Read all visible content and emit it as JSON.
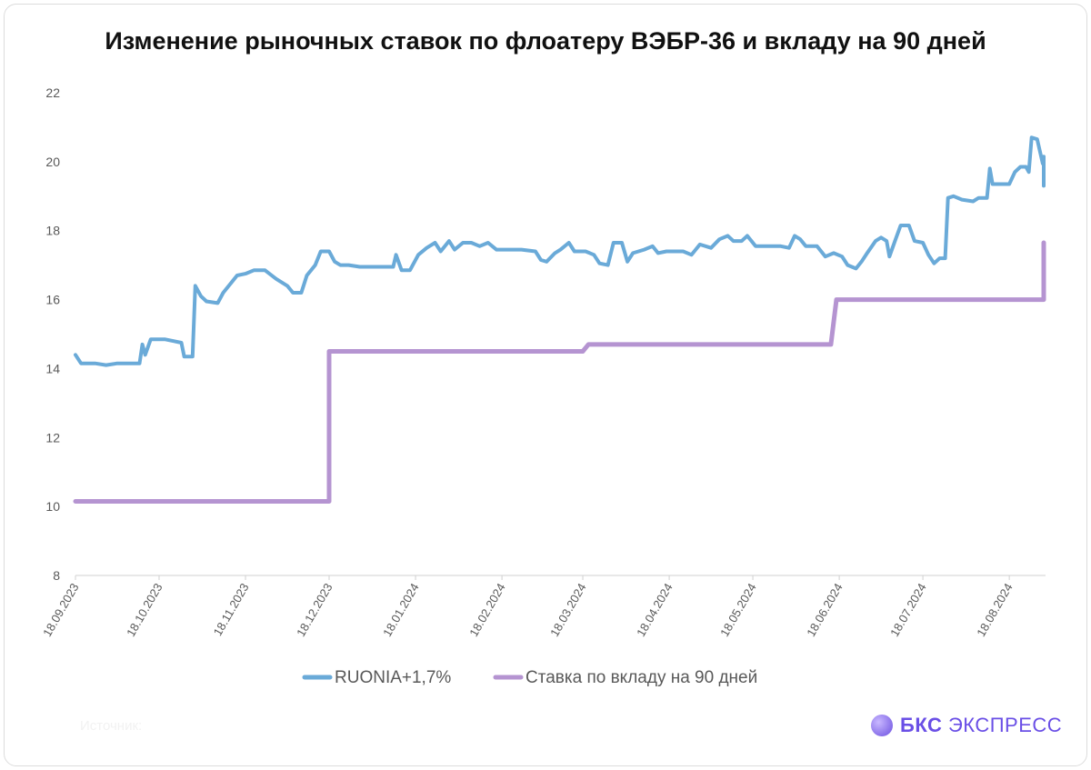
{
  "chart_data": {
    "type": "line",
    "title": "Изменение рыночных ставок по флоатеру ВЭБР-36 и вкладу на 90 дней",
    "ylim": [
      8,
      22
    ],
    "yticks": [
      "8",
      "10",
      "12",
      "14",
      "16",
      "18",
      "20",
      "22"
    ],
    "x_range": [
      "2023-09-18",
      "2024-08-31"
    ],
    "xticks": [
      {
        "label": "18.09.2023",
        "date": "2023-09-18"
      },
      {
        "label": "18.10.2023",
        "date": "2023-10-18"
      },
      {
        "label": "18.11.2023",
        "date": "2023-11-18"
      },
      {
        "label": "18.12.2023",
        "date": "2023-12-18"
      },
      {
        "label": "18.01.2024",
        "date": "2024-01-18"
      },
      {
        "label": "18.02.2024",
        "date": "2024-02-18"
      },
      {
        "label": "18.03.2024",
        "date": "2024-03-18"
      },
      {
        "label": "18.04.2024",
        "date": "2024-04-18"
      },
      {
        "label": "18.05.2024",
        "date": "2024-05-18"
      },
      {
        "label": "18.06.2024",
        "date": "2024-06-18"
      },
      {
        "label": "18.07.2024",
        "date": "2024-07-18"
      },
      {
        "label": "18.08.2024",
        "date": "2024-08-18"
      }
    ],
    "grid": false,
    "legend_position": "bottom",
    "series": [
      {
        "name": "RUONIA+1,7%",
        "color": "#6aaad8",
        "points": [
          [
            "2023-09-18",
            14.4
          ],
          [
            "2023-09-20",
            14.15
          ],
          [
            "2023-09-25",
            14.15
          ],
          [
            "2023-09-29",
            14.1
          ],
          [
            "2023-10-03",
            14.15
          ],
          [
            "2023-10-08",
            14.15
          ],
          [
            "2023-10-11",
            14.15
          ],
          [
            "2023-10-12",
            14.7
          ],
          [
            "2023-10-13",
            14.4
          ],
          [
            "2023-10-15",
            14.85
          ],
          [
            "2023-10-20",
            14.85
          ],
          [
            "2023-10-23",
            14.8
          ],
          [
            "2023-10-26",
            14.75
          ],
          [
            "2023-10-27",
            14.35
          ],
          [
            "2023-10-30",
            14.35
          ],
          [
            "2023-10-31",
            16.4
          ],
          [
            "2023-11-02",
            16.1
          ],
          [
            "2023-11-04",
            15.95
          ],
          [
            "2023-11-08",
            15.9
          ],
          [
            "2023-11-10",
            16.2
          ],
          [
            "2023-11-13",
            16.5
          ],
          [
            "2023-11-15",
            16.7
          ],
          [
            "2023-11-18",
            16.75
          ],
          [
            "2023-11-21",
            16.85
          ],
          [
            "2023-11-25",
            16.85
          ],
          [
            "2023-11-29",
            16.6
          ],
          [
            "2023-12-03",
            16.4
          ],
          [
            "2023-12-05",
            16.2
          ],
          [
            "2023-12-08",
            16.2
          ],
          [
            "2023-12-10",
            16.7
          ],
          [
            "2023-12-13",
            17.0
          ],
          [
            "2023-12-15",
            17.4
          ],
          [
            "2023-12-18",
            17.4
          ],
          [
            "2023-12-20",
            17.1
          ],
          [
            "2023-12-22",
            17.0
          ],
          [
            "2023-12-25",
            17.0
          ],
          [
            "2023-12-29",
            16.95
          ],
          [
            "2024-01-05",
            16.95
          ],
          [
            "2024-01-10",
            16.95
          ],
          [
            "2024-01-11",
            17.3
          ],
          [
            "2024-01-13",
            16.85
          ],
          [
            "2024-01-16",
            16.85
          ],
          [
            "2024-01-19",
            17.3
          ],
          [
            "2024-01-22",
            17.5
          ],
          [
            "2024-01-25",
            17.65
          ],
          [
            "2024-01-27",
            17.4
          ],
          [
            "2024-01-30",
            17.7
          ],
          [
            "2024-02-01",
            17.45
          ],
          [
            "2024-02-04",
            17.65
          ],
          [
            "2024-02-07",
            17.65
          ],
          [
            "2024-02-10",
            17.55
          ],
          [
            "2024-02-13",
            17.65
          ],
          [
            "2024-02-16",
            17.45
          ],
          [
            "2024-02-20",
            17.45
          ],
          [
            "2024-02-25",
            17.45
          ],
          [
            "2024-03-01",
            17.4
          ],
          [
            "2024-03-03",
            17.15
          ],
          [
            "2024-03-05",
            17.1
          ],
          [
            "2024-03-08",
            17.35
          ],
          [
            "2024-03-10",
            17.45
          ],
          [
            "2024-03-13",
            17.65
          ],
          [
            "2024-03-15",
            17.4
          ],
          [
            "2024-03-19",
            17.4
          ],
          [
            "2024-03-22",
            17.3
          ],
          [
            "2024-03-24",
            17.05
          ],
          [
            "2024-03-27",
            17.0
          ],
          [
            "2024-03-29",
            17.65
          ],
          [
            "2024-04-01",
            17.65
          ],
          [
            "2024-04-03",
            17.1
          ],
          [
            "2024-04-05",
            17.35
          ],
          [
            "2024-04-09",
            17.45
          ],
          [
            "2024-04-12",
            17.55
          ],
          [
            "2024-04-14",
            17.35
          ],
          [
            "2024-04-17",
            17.4
          ],
          [
            "2024-04-20",
            17.4
          ],
          [
            "2024-04-23",
            17.4
          ],
          [
            "2024-04-26",
            17.3
          ],
          [
            "2024-04-29",
            17.6
          ],
          [
            "2024-05-03",
            17.5
          ],
          [
            "2024-05-06",
            17.75
          ],
          [
            "2024-05-09",
            17.85
          ],
          [
            "2024-05-11",
            17.7
          ],
          [
            "2024-05-14",
            17.7
          ],
          [
            "2024-05-16",
            17.85
          ],
          [
            "2024-05-19",
            17.55
          ],
          [
            "2024-05-23",
            17.55
          ],
          [
            "2024-05-28",
            17.55
          ],
          [
            "2024-05-31",
            17.5
          ],
          [
            "2024-06-02",
            17.85
          ],
          [
            "2024-06-04",
            17.75
          ],
          [
            "2024-06-06",
            17.55
          ],
          [
            "2024-06-10",
            17.55
          ],
          [
            "2024-06-13",
            17.25
          ],
          [
            "2024-06-16",
            17.35
          ],
          [
            "2024-06-19",
            17.25
          ],
          [
            "2024-06-21",
            17.0
          ],
          [
            "2024-06-24",
            16.9
          ],
          [
            "2024-06-26",
            17.1
          ],
          [
            "2024-06-28",
            17.35
          ],
          [
            "2024-07-01",
            17.7
          ],
          [
            "2024-07-03",
            17.8
          ],
          [
            "2024-07-05",
            17.7
          ],
          [
            "2024-07-06",
            17.25
          ],
          [
            "2024-07-08",
            17.7
          ],
          [
            "2024-07-10",
            18.15
          ],
          [
            "2024-07-13",
            18.15
          ],
          [
            "2024-07-15",
            17.7
          ],
          [
            "2024-07-18",
            17.65
          ],
          [
            "2024-07-20",
            17.3
          ],
          [
            "2024-07-22",
            17.05
          ],
          [
            "2024-07-24",
            17.2
          ],
          [
            "2024-07-26",
            17.2
          ],
          [
            "2024-07-27",
            18.95
          ],
          [
            "2024-07-29",
            19.0
          ],
          [
            "2024-08-01",
            18.9
          ],
          [
            "2024-08-05",
            18.85
          ],
          [
            "2024-08-07",
            18.95
          ],
          [
            "2024-08-10",
            18.95
          ],
          [
            "2024-08-11",
            19.8
          ],
          [
            "2024-08-12",
            19.35
          ],
          [
            "2024-08-16",
            19.35
          ],
          [
            "2024-08-18",
            19.35
          ],
          [
            "2024-08-20",
            19.7
          ],
          [
            "2024-08-22",
            19.85
          ],
          [
            "2024-08-24",
            19.85
          ],
          [
            "2024-08-25",
            19.7
          ],
          [
            "2024-08-26",
            20.7
          ],
          [
            "2024-08-28",
            20.65
          ],
          [
            "2024-08-30",
            19.95
          ],
          [
            "2024-09-01",
            20.1
          ],
          [
            "2024-09-04",
            20.0
          ],
          [
            "2024-09-06",
            19.3
          ],
          [
            "2024-09-08",
            20.0
          ],
          [
            "2024-09-10",
            20.15
          ]
        ]
      },
      {
        "name": "Ставка по вкладу на 90 дней",
        "color": "#b594d1",
        "points": [
          [
            "2023-09-18",
            10.15
          ],
          [
            "2023-12-18",
            10.15
          ],
          [
            "2023-12-18",
            14.5
          ],
          [
            "2024-03-18",
            14.5
          ],
          [
            "2024-03-20",
            14.7
          ],
          [
            "2024-06-15",
            14.7
          ],
          [
            "2024-06-17",
            16.0
          ],
          [
            "2024-09-10",
            16.0
          ],
          [
            "2024-09-10",
            17.65
          ]
        ]
      }
    ]
  },
  "footer": {
    "source_label": "Источник:",
    "brand_bold": "БКС",
    "brand_rest": " ЭКСПРЕСС"
  }
}
